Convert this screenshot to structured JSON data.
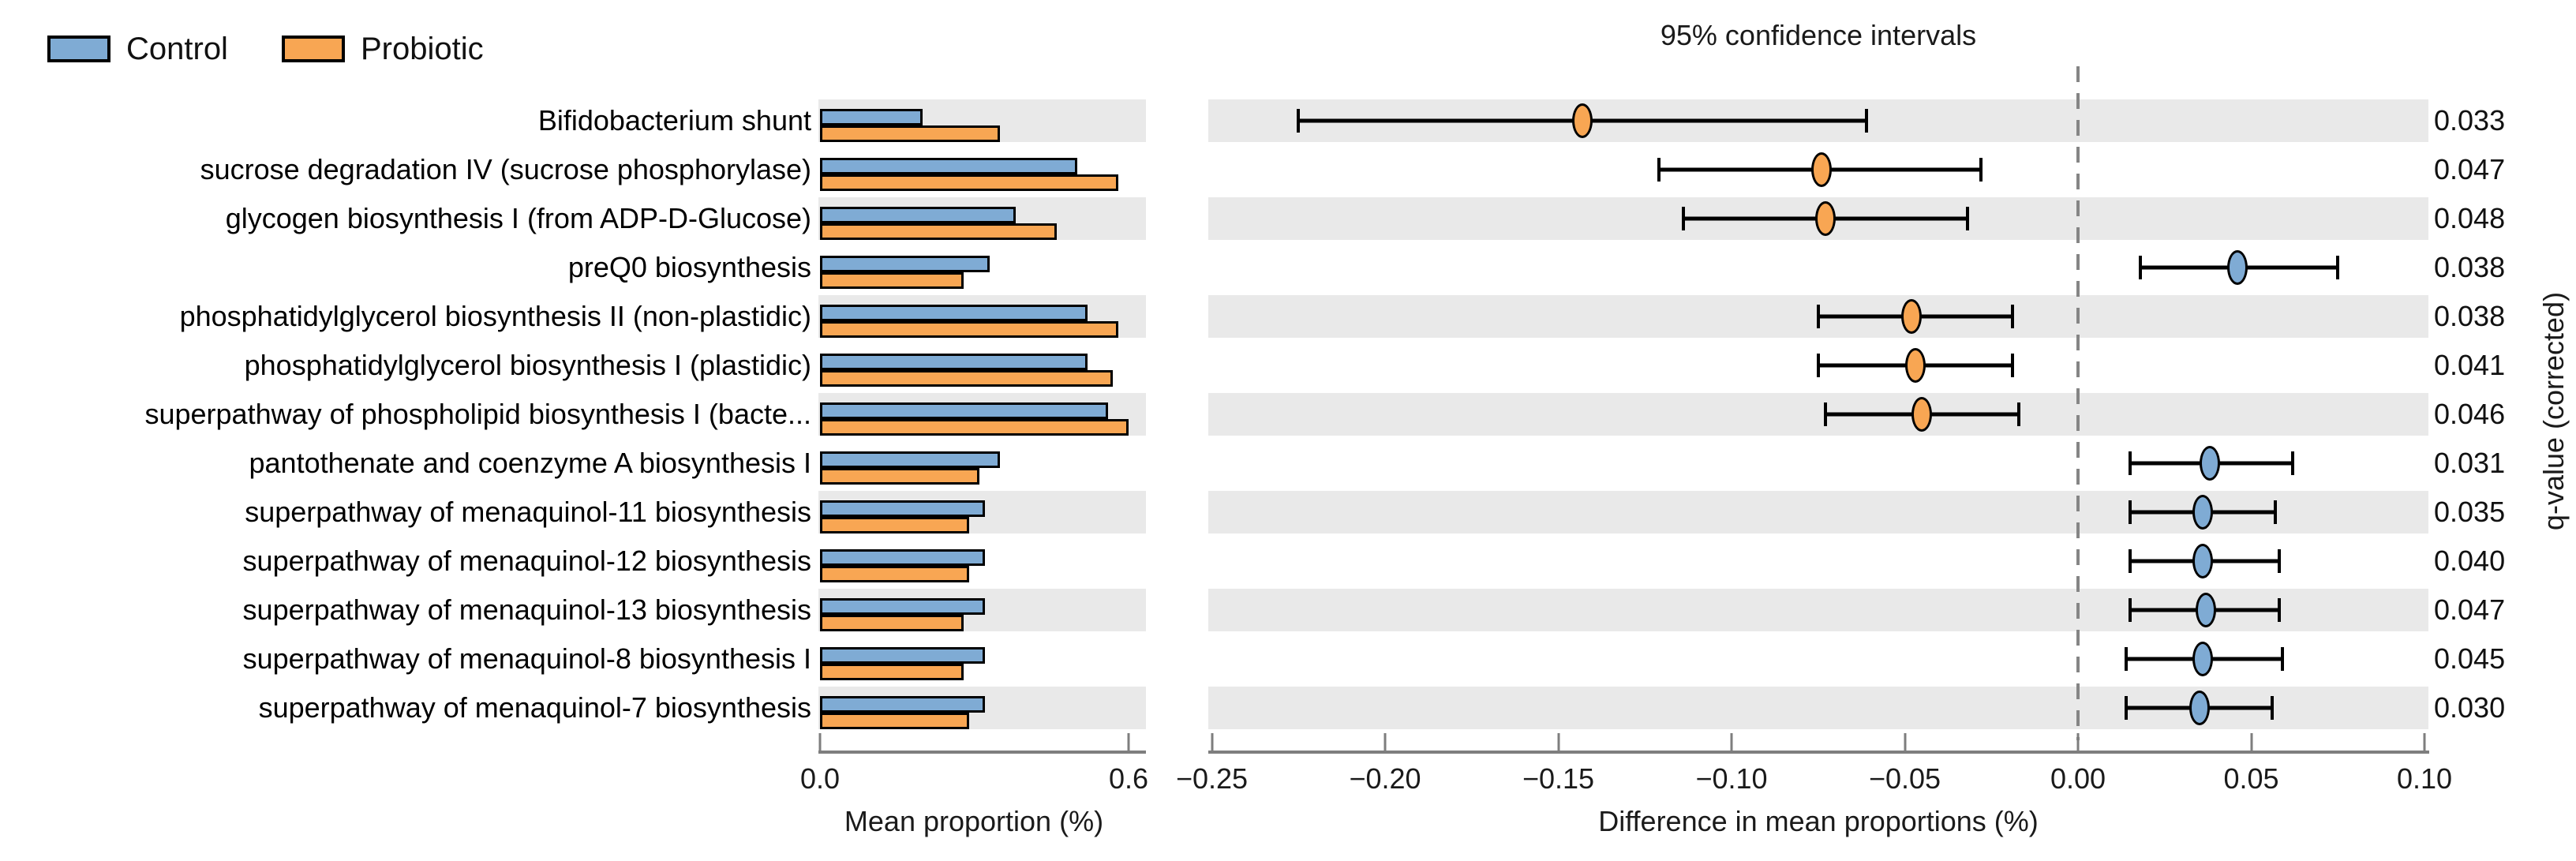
{
  "colors": {
    "control": "#7fabd4",
    "probiotic": "#f8a653",
    "stripe": "#e9e9e9",
    "axis": "#7e7e7e",
    "dashed_line": "#858585",
    "errorbar": "#000000"
  },
  "legend": {
    "items": [
      {
        "label": "Control",
        "color": "#7fabd4"
      },
      {
        "label": "Probiotic",
        "color": "#f8a653"
      }
    ]
  },
  "left_panel": {
    "xlabel": "Mean proportion (%)",
    "tick_labels": [
      "0.0",
      "0.6"
    ]
  },
  "right_panel": {
    "title": "95% confidence intervals",
    "xlabel": "Difference in mean proportions (%)",
    "ylabel": "q-value (corrected)",
    "tick_labels": [
      "−0.25",
      "−0.20",
      "−0.15",
      "−0.10",
      "−0.05",
      "0.00",
      "0.05",
      "0.10"
    ]
  },
  "chart_data": [
    {
      "type": "bar",
      "orientation": "horizontal",
      "xlabel": "Mean proportion (%)",
      "xlim": [
        0,
        0.638
      ],
      "xticks": [
        0.0,
        0.6
      ],
      "grid": false,
      "categories": [
        "Bifidobacterium shunt",
        "sucrose degradation IV (sucrose phosphorylase)",
        "glycogen biosynthesis I (from ADP-D-Glucose)",
        "preQ0 biosynthesis",
        "phosphatidylglycerol biosynthesis II (non-plastidic)",
        "phosphatidylglycerol biosynthesis I (plastidic)",
        "superpathway of phospholipid biosynthesis I (bacte...",
        "pantothenate and coenzyme A biosynthesis I",
        "superpathway of menaquinol-11 biosynthesis",
        "superpathway of menaquinol-12 biosynthesis",
        "superpathway of menaquinol-13 biosynthesis",
        "superpathway of menaquinol-8 biosynthesis I",
        "superpathway of menaquinol-7 biosynthesis"
      ],
      "series": [
        {
          "name": "Control",
          "color": "#7fabd4",
          "values": [
            0.2,
            0.5,
            0.38,
            0.33,
            0.52,
            0.52,
            0.56,
            0.35,
            0.32,
            0.32,
            0.32,
            0.32,
            0.32
          ]
        },
        {
          "name": "Probiotic",
          "color": "#f8a653",
          "values": [
            0.35,
            0.58,
            0.46,
            0.28,
            0.58,
            0.57,
            0.6,
            0.31,
            0.29,
            0.29,
            0.28,
            0.28,
            0.29
          ]
        }
      ]
    },
    {
      "type": "scatter",
      "title": "95% confidence intervals",
      "xlabel": "Difference in mean proportions (%)",
      "ylabel": "q-value (corrected)",
      "xlim": [
        -0.251,
        0.102
      ],
      "xticks": [
        -0.25,
        -0.2,
        -0.15,
        -0.1,
        -0.05,
        0.0,
        0.05,
        0.1
      ],
      "zero_line": 0.0,
      "legend_position": "none",
      "points": [
        {
          "diff": -0.143,
          "ci": [
            -0.225,
            -0.061
          ],
          "group": "Probiotic",
          "q": "0.033"
        },
        {
          "diff": -0.074,
          "ci": [
            -0.121,
            -0.028
          ],
          "group": "Probiotic",
          "q": "0.047"
        },
        {
          "diff": -0.073,
          "ci": [
            -0.114,
            -0.032
          ],
          "group": "Probiotic",
          "q": "0.048"
        },
        {
          "diff": 0.046,
          "ci": [
            0.018,
            0.075
          ],
          "group": "Control",
          "q": "0.038"
        },
        {
          "diff": -0.048,
          "ci": [
            -0.075,
            -0.019
          ],
          "group": "Probiotic",
          "q": "0.038"
        },
        {
          "diff": -0.047,
          "ci": [
            -0.075,
            -0.019
          ],
          "group": "Probiotic",
          "q": "0.041"
        },
        {
          "diff": -0.045,
          "ci": [
            -0.073,
            -0.017
          ],
          "group": "Probiotic",
          "q": "0.046"
        },
        {
          "diff": 0.038,
          "ci": [
            0.015,
            0.062
          ],
          "group": "Control",
          "q": "0.031"
        },
        {
          "diff": 0.036,
          "ci": [
            0.015,
            0.057
          ],
          "group": "Control",
          "q": "0.035"
        },
        {
          "diff": 0.036,
          "ci": [
            0.015,
            0.058
          ],
          "group": "Control",
          "q": "0.040"
        },
        {
          "diff": 0.037,
          "ci": [
            0.015,
            0.058
          ],
          "group": "Control",
          "q": "0.047"
        },
        {
          "diff": 0.036,
          "ci": [
            0.014,
            0.059
          ],
          "group": "Control",
          "q": "0.045"
        },
        {
          "diff": 0.035,
          "ci": [
            0.014,
            0.056
          ],
          "group": "Control",
          "q": "0.030"
        }
      ]
    }
  ]
}
